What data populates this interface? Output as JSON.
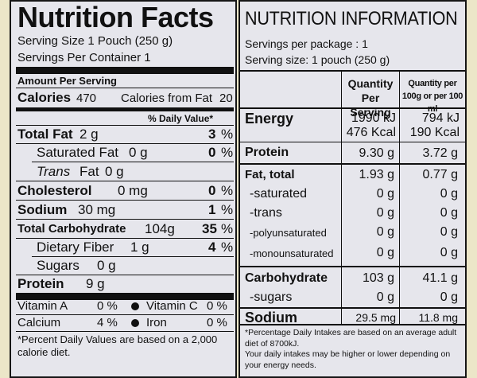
{
  "left": {
    "title": "Nutrition Facts",
    "serving_size": "Serving Size 1 Pouch (250 g)",
    "servings_per_container": "Servings Per Container 1",
    "amount_per_serving": "Amount Per Serving",
    "calories_label": "Calories",
    "calories_value": "470",
    "calories_fat_label": "Calories from Fat",
    "calories_fat_value": "20",
    "daily_value_header": "% Daily Value*",
    "rows": [
      {
        "label": "Total Fat",
        "amount": "2  g",
        "dv": "3",
        "pct": "%"
      },
      {
        "label": "Saturated Fat",
        "amount": "0 g",
        "dv": "0",
        "pct": "%"
      },
      {
        "label": "Trans",
        "label2": "Fat",
        "amount": "0 g"
      },
      {
        "label": "Cholesterol",
        "amount": "0  mg",
        "dv": "0",
        "pct": "%"
      },
      {
        "label": "Sodium",
        "amount": "30  mg",
        "dv": "1",
        "pct": "%"
      },
      {
        "label": "Total Carbohydrate",
        "amount": "104g",
        "dv": "35",
        "pct": "%"
      },
      {
        "label": "Dietary Fiber",
        "amount": "1 g",
        "dv": "4",
        "pct": "%"
      },
      {
        "label": "Sugars",
        "amount": "0  g"
      },
      {
        "label": "Protein",
        "amount": "9  g"
      }
    ],
    "vitamins": [
      {
        "name": "Vitamin A",
        "value": "0 %",
        "name2": "Vitamin C",
        "value2": "0  %"
      },
      {
        "name": "Calcium",
        "value": "4 %",
        "name2": "Iron",
        "value2": "0  %"
      }
    ],
    "footnote": "*Percent Daily Values are based on a 2,000 calorie diet."
  },
  "right": {
    "title": "NUTRITION INFORMATION",
    "servings_per_package": "Servings per package : 1",
    "serving_size": "Serving size: 1 pouch (250 g)",
    "col_headers": [
      "Quantity Per Serving",
      "Quantity per 100g or per 100 ml"
    ],
    "energy": {
      "label": "Energy",
      "per_serving": [
        "1990  kJ",
        "476 Kcal"
      ],
      "per_100": [
        "794  kJ",
        "190 Kcal"
      ]
    },
    "protein": {
      "label": "Protein",
      "per_serving": "9.30  g",
      "per_100": "3.72  g"
    },
    "fat": [
      {
        "label": "Fat, total",
        "per_serving": "1.93  g",
        "per_100": "0.77  g"
      },
      {
        "label": "-saturated",
        "per_serving": "0  g",
        "per_100": "0  g"
      },
      {
        "label": "-trans",
        "per_serving": "0  g",
        "per_100": "0  g"
      },
      {
        "label": "-polyunsaturated",
        "per_serving": "0  g",
        "per_100": "0  g"
      },
      {
        "label": "-monounsaturated",
        "per_serving": "0  g",
        "per_100": "0  g"
      }
    ],
    "carb": [
      {
        "label": "Carbohydrate",
        "per_serving": "103  g",
        "per_100": "41.1  g"
      },
      {
        "label": "-sugars",
        "per_serving": "0  g",
        "per_100": "0  g"
      }
    ],
    "sodium": {
      "label": "Sodium",
      "per_serving": "29.5 mg",
      "per_100": "11.8 mg"
    },
    "footnote1": "*Percentage Daily Intakes are based on an average adult diet of 8700kJ.",
    "footnote2": "Your daily intakes may be higher or lower depending on your energy needs."
  }
}
